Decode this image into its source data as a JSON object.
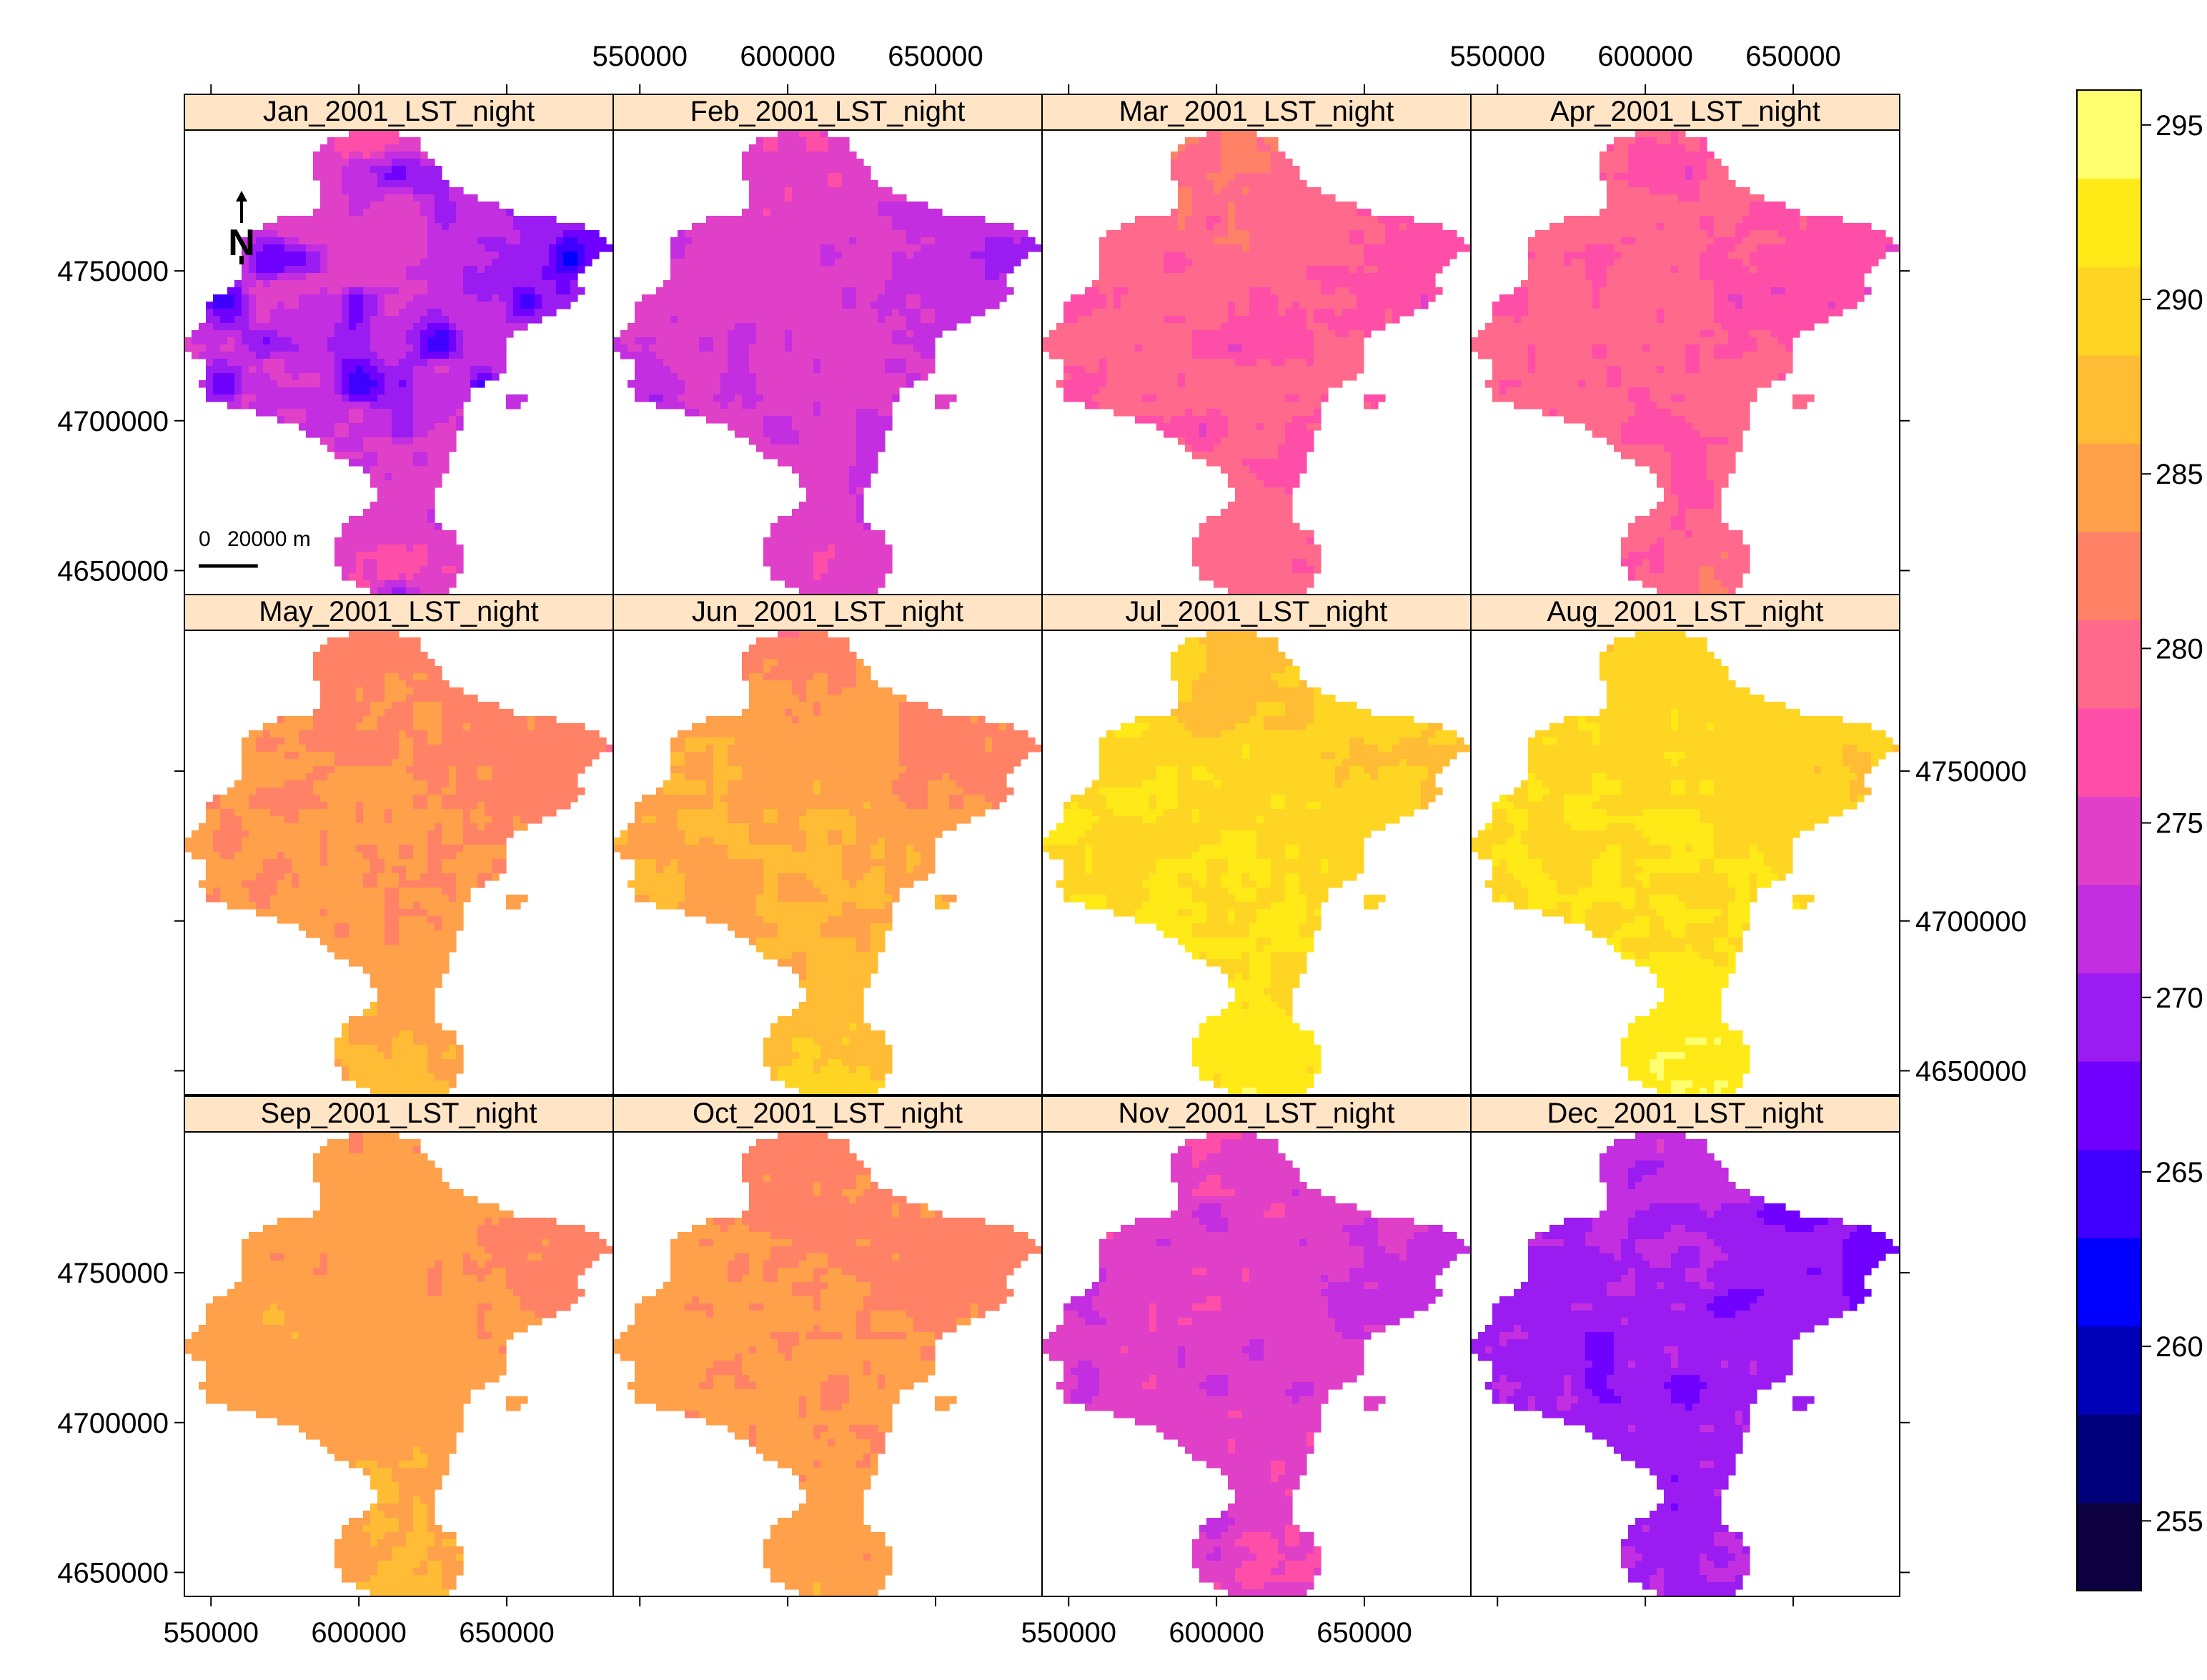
{
  "panels": [
    {
      "title": "Jan_2001_LST_night",
      "base": 273,
      "north": 277,
      "east": 266,
      "cold": 264,
      "south": 277
    },
    {
      "title": "Feb_2001_LST_night",
      "base": 274,
      "north": 276,
      "east": 270,
      "cold": 271,
      "south": 276
    },
    {
      "title": "Mar_2001_LST_night",
      "base": 279,
      "north": 282,
      "east": 277,
      "cold": 276,
      "south": 280
    },
    {
      "title": "Apr_2001_LST_night",
      "base": 279,
      "north": 279,
      "east": 276,
      "cold": 276,
      "south": 281
    },
    {
      "title": "May_2001_LST_night",
      "base": 284,
      "north": 282,
      "east": 281,
      "cold": 283,
      "south": 288
    },
    {
      "title": "Jun_2001_LST_night",
      "base": 286,
      "north": 282,
      "east": 281,
      "cold": 284,
      "south": 290
    },
    {
      "title": "Jul_2001_LST_night",
      "base": 291,
      "north": 288,
      "east": 287,
      "cold": 289,
      "south": 293
    },
    {
      "title": "Aug_2001_LST_night",
      "base": 291,
      "north": 289,
      "east": 288,
      "cold": 290,
      "south": 294
    },
    {
      "title": "Sep_2001_LST_night",
      "base": 285,
      "north": 284,
      "east": 281,
      "cold": 284,
      "south": 287
    },
    {
      "title": "Oct_2001_LST_night",
      "base": 284,
      "north": 282,
      "east": 281,
      "cold": 283,
      "south": 285
    },
    {
      "title": "Nov_2001_LST_night",
      "base": 275,
      "north": 276,
      "east": 271,
      "cold": 272,
      "south": 276
    },
    {
      "title": "Dec_2001_LST_night",
      "base": 270,
      "north": 273,
      "east": 268,
      "cold": 267,
      "south": 271
    }
  ],
  "x_ticks": [
    "550000",
    "600000",
    "650000"
  ],
  "y_ticks": [
    "4750000",
    "4700000",
    "4650000"
  ],
  "x_range": [
    541000,
    686000
  ],
  "y_range": [
    4642000,
    4797000
  ],
  "scalebar": {
    "label_zero": "0",
    "label_len": "20000 m",
    "length_m": 20000
  },
  "north_arrow": {
    "label": "N"
  },
  "colorbar": {
    "range": [
      253,
      296
    ],
    "ticks": [
      "255",
      "260",
      "265",
      "270",
      "275",
      "280",
      "285",
      "290",
      "295"
    ],
    "colors": [
      "#0d0040",
      "#00007a",
      "#0000b8",
      "#0000ff",
      "#4000ff",
      "#7000ff",
      "#9a1cf0",
      "#c22ee0",
      "#e040c8",
      "#ff4ea8",
      "#ff6a8c",
      "#ff8266",
      "#ffa04a",
      "#ffbc34",
      "#ffd524",
      "#ffea18",
      "#ffff70"
    ]
  }
}
